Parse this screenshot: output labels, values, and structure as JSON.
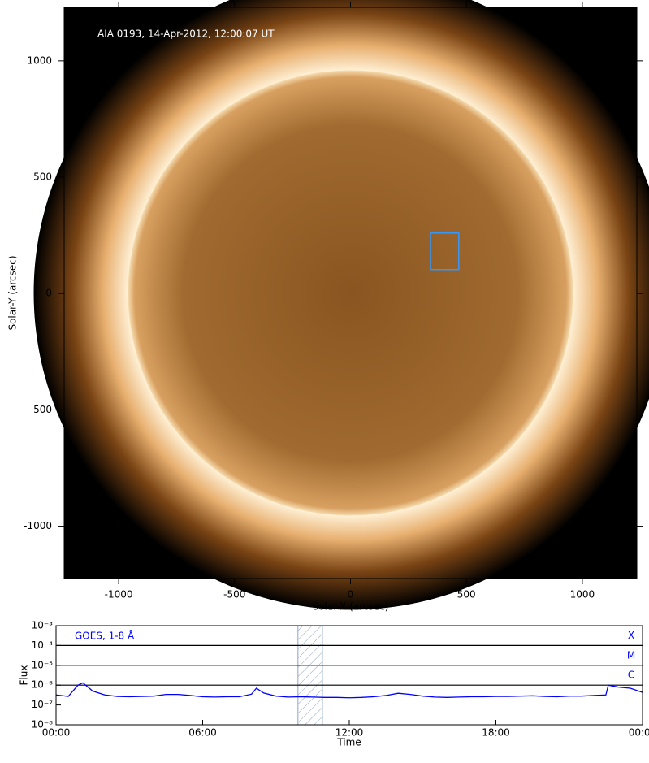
{
  "chart_data": [
    {
      "type": "image",
      "title": "AIA 0193, 14-Apr-2012, 12:00:07 UT",
      "x_label": "Solar-X (arcsec)",
      "y_label": "Solar-Y (arcsec)",
      "xlim": [
        -1235,
        1235
      ],
      "ylim": [
        -1225,
        1230
      ],
      "xticks": [
        -1000,
        -500,
        0,
        500,
        1000
      ],
      "yticks": [
        -1000,
        -500,
        0,
        500,
        1000
      ],
      "box": {
        "xlim": [
          345,
          467
        ],
        "ylim": [
          103,
          260
        ],
        "color": "#3399ff"
      }
    },
    {
      "type": "line",
      "x_label": "Time",
      "y_label": "Flux",
      "yscale": "log",
      "xlim": [
        0,
        24
      ],
      "ylim": [
        1e-08,
        0.001
      ],
      "xticks": [
        {
          "value": 0,
          "label": "00:00"
        },
        {
          "value": 6,
          "label": "06:00"
        },
        {
          "value": 12,
          "label": "12:00"
        },
        {
          "value": 18,
          "label": "18:00"
        },
        {
          "value": 24,
          "label": "00:00"
        }
      ],
      "yticks": [
        {
          "value": 1e-08,
          "label": "10⁻⁸"
        },
        {
          "value": 1e-07,
          "label": "10⁻⁷"
        },
        {
          "value": 1e-06,
          "label": "10⁻⁶"
        },
        {
          "value": 1e-05,
          "label": "10⁻⁵"
        },
        {
          "value": 0.0001,
          "label": "10⁻⁴"
        },
        {
          "value": 0.001,
          "label": "10⁻³"
        }
      ],
      "levels": [
        {
          "value": 0.0001,
          "label": "X"
        },
        {
          "value": 1e-05,
          "label": "M"
        },
        {
          "value": 1e-06,
          "label": "C"
        }
      ],
      "highlight": [
        9.9,
        10.9
      ],
      "x": [
        0,
        0.5,
        0.9,
        1.1,
        1.5,
        2,
        2.5,
        3,
        3.5,
        4,
        4.5,
        5,
        5.5,
        6,
        6.5,
        7,
        7.5,
        8,
        8.2,
        8.5,
        9,
        9.5,
        10,
        10.5,
        11,
        11.5,
        12,
        12.5,
        13,
        13.5,
        14,
        14.5,
        15,
        15.5,
        16,
        16.5,
        17,
        17.5,
        18,
        18.5,
        19,
        19.5,
        20,
        20.5,
        21,
        21.5,
        22,
        22.5,
        22.6,
        23,
        23.5,
        24
      ],
      "series": [
        {
          "name": "GOES, 1-8 Å",
          "color": "#0000ff",
          "values": [
            3.2e-07,
            2.7e-07,
            1e-06,
            1.3e-06,
            5e-07,
            3.2e-07,
            2.7e-07,
            2.6e-07,
            2.7e-07,
            2.8e-07,
            3.4e-07,
            3.4e-07,
            3e-07,
            2.6e-07,
            2.5e-07,
            2.6e-07,
            2.6e-07,
            3.5e-07,
            7e-07,
            4e-07,
            2.8e-07,
            2.5e-07,
            2.6e-07,
            2.5e-07,
            2.4e-07,
            2.4e-07,
            2.3e-07,
            2.4e-07,
            2.6e-07,
            3e-07,
            3.9e-07,
            3.4e-07,
            2.8e-07,
            2.5e-07,
            2.4e-07,
            2.5e-07,
            2.6e-07,
            2.6e-07,
            2.7e-07,
            2.7e-07,
            2.8e-07,
            2.9e-07,
            2.7e-07,
            2.6e-07,
            2.8e-07,
            2.8e-07,
            3e-07,
            3.2e-07,
            1e-06,
            8e-07,
            7e-07,
            4.3e-07
          ]
        }
      ]
    }
  ]
}
